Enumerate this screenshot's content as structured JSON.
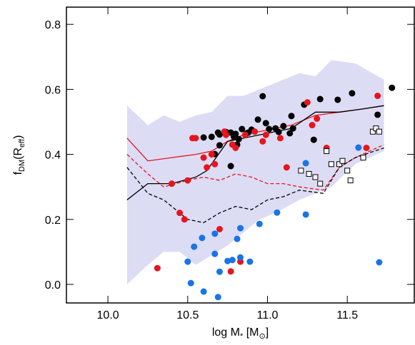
{
  "chart_data": {
    "type": "scatter",
    "xlabel": [
      "log M",
      "*",
      " [M",
      "⊙",
      "]"
    ],
    "ylabel": [
      "f",
      "DM",
      "(R",
      "eff",
      ")"
    ],
    "xlim": [
      9.74,
      11.92
    ],
    "ylim": [
      -0.057,
      0.853
    ],
    "xticks": [
      {
        "value": 10,
        "label": "10.0"
      },
      10.5,
      {
        "value": 11,
        "label": "11.0"
      },
      11.5
    ],
    "yticks": [
      {
        "value": 0,
        "label": "0.0"
      },
      0.2,
      0.4,
      0.6,
      0.8
    ],
    "bands": [
      {
        "color": "#dcdcf5",
        "x": [
          10.12,
          10.25,
          10.35,
          10.45,
          10.55,
          10.65,
          10.75,
          10.85,
          10.95,
          11.05,
          11.2,
          11.3,
          11.4,
          11.55,
          11.73
        ],
        "upper": [
          0.55,
          0.49,
          0.52,
          0.5,
          0.52,
          0.53,
          0.58,
          0.58,
          0.6,
          0.62,
          0.65,
          0.64,
          0.69,
          0.68,
          0.63
        ],
        "lower": [
          0.0,
          0.06,
          0.1,
          0.1,
          0.06,
          0.09,
          0.12,
          0.16,
          0.2,
          0.22,
          0.26,
          0.28,
          0.3,
          0.37,
          0.41
        ]
      }
    ],
    "lines": [
      {
        "color": "#e8141c",
        "style": "solid",
        "x": [
          10.12,
          10.25,
          10.4,
          10.55,
          10.65,
          10.75,
          10.85,
          10.95,
          11.05,
          11.15,
          11.3,
          11.45,
          11.6,
          11.73
        ],
        "values": [
          0.45,
          0.38,
          0.39,
          0.4,
          0.41,
          0.44,
          0.46,
          0.47,
          0.48,
          0.49,
          0.52,
          0.53,
          0.54,
          0.55
        ]
      },
      {
        "color": "#e8141c",
        "style": "dashed",
        "x": [
          10.12,
          10.25,
          10.35,
          10.5,
          10.6,
          10.7,
          10.8,
          10.9,
          11.0,
          11.1,
          11.2,
          11.35,
          11.45,
          11.55,
          11.73
        ],
        "values": [
          0.4,
          0.34,
          0.3,
          0.32,
          0.33,
          0.32,
          0.34,
          0.33,
          0.31,
          0.31,
          0.3,
          0.29,
          0.36,
          0.39,
          0.43
        ]
      },
      {
        "color": "#000000",
        "style": "solid",
        "x": [
          10.12,
          10.25,
          10.4,
          10.55,
          10.62,
          10.75,
          10.85,
          10.95,
          11.05,
          11.15,
          11.3,
          11.45,
          11.6,
          11.73
        ],
        "values": [
          0.26,
          0.31,
          0.31,
          0.33,
          0.35,
          0.44,
          0.45,
          0.46,
          0.47,
          0.48,
          0.53,
          0.53,
          0.54,
          0.55
        ]
      },
      {
        "color": "#000000",
        "style": "dashed",
        "x": [
          10.12,
          10.25,
          10.35,
          10.5,
          10.6,
          10.7,
          10.8,
          10.9,
          11.0,
          11.1,
          11.2,
          11.35,
          11.45,
          11.55,
          11.73
        ],
        "values": [
          0.36,
          0.28,
          0.26,
          0.2,
          0.19,
          0.22,
          0.24,
          0.23,
          0.26,
          0.27,
          0.29,
          0.28,
          0.36,
          0.39,
          0.42
        ]
      }
    ],
    "series": [
      {
        "color": "#000000",
        "marker": "circle",
        "x": [
          10.6,
          10.65,
          10.67,
          10.69,
          10.7,
          10.7,
          10.74,
          10.77,
          10.79,
          10.8,
          10.81,
          10.82,
          10.84,
          10.87,
          10.88,
          10.9,
          10.94,
          10.97,
          10.99,
          11.01,
          11.05,
          11.07,
          11.1,
          11.14,
          11.15,
          11.16,
          11.23,
          11.29,
          11.33,
          11.44,
          11.53,
          11.69,
          11.78,
          10.77
        ],
        "values": [
          0.452,
          0.454,
          0.401,
          0.467,
          0.461,
          0.428,
          0.469,
          0.467,
          0.454,
          0.463,
          0.43,
          0.447,
          0.478,
          0.465,
          0.467,
          0.476,
          0.507,
          0.579,
          0.496,
          0.478,
          0.48,
          0.469,
          0.487,
          0.465,
          0.518,
          0.48,
          0.553,
          0.445,
          0.57,
          0.568,
          0.588,
          0.522,
          0.605,
          0.364
        ]
      },
      {
        "color": "#e8141c",
        "marker": "circle",
        "x": [
          10.31,
          10.4,
          10.45,
          10.48,
          10.5,
          10.53,
          10.6,
          10.62,
          10.67,
          10.7,
          10.73,
          10.74,
          10.77,
          10.8,
          10.83,
          10.86,
          10.92,
          10.99,
          11.08,
          11.12,
          11.25,
          11.28,
          11.31,
          11.37,
          11.69,
          11.62,
          10.55,
          10.65,
          10.78,
          10.97
        ],
        "values": [
          0.05,
          0.31,
          0.22,
          0.2,
          0.32,
          0.45,
          0.39,
          0.36,
          0.37,
          0.17,
          0.47,
          0.46,
          0.04,
          0.42,
          0.07,
          0.46,
          0.47,
          0.46,
          0.45,
          0.36,
          0.56,
          0.49,
          0.51,
          0.42,
          0.58,
          0.42,
          0.45,
          0.4,
          0.43,
          0.44
        ]
      },
      {
        "color": "#1874e8",
        "marker": "circle",
        "x": [
          10.54,
          10.5,
          10.59,
          10.67,
          10.52,
          10.6,
          10.67,
          10.69,
          10.7,
          10.75,
          10.83,
          10.81,
          10.78,
          10.83,
          10.89,
          10.95,
          11.06,
          11.24,
          11.24,
          11.7,
          11.57
        ],
        "values": [
          0.116,
          0.07,
          0.143,
          0.156,
          0.004,
          -0.022,
          0.094,
          -0.039,
          0.039,
          0.072,
          0.173,
          0.14,
          0.075,
          0.083,
          0.07,
          0.186,
          0.221,
          0.373,
          0.215,
          0.068,
          0.421
        ]
      },
      {
        "color": "#000000",
        "marker": "square",
        "x": [
          11.21,
          11.26,
          11.3,
          11.33,
          11.37,
          11.4,
          11.45,
          11.47,
          11.52,
          11.5,
          11.6,
          11.66,
          11.68,
          11.7
        ],
        "values": [
          0.35,
          0.34,
          0.33,
          0.31,
          0.41,
          0.37,
          0.37,
          0.38,
          0.32,
          0.35,
          0.39,
          0.47,
          0.48,
          0.47
        ]
      }
    ]
  }
}
